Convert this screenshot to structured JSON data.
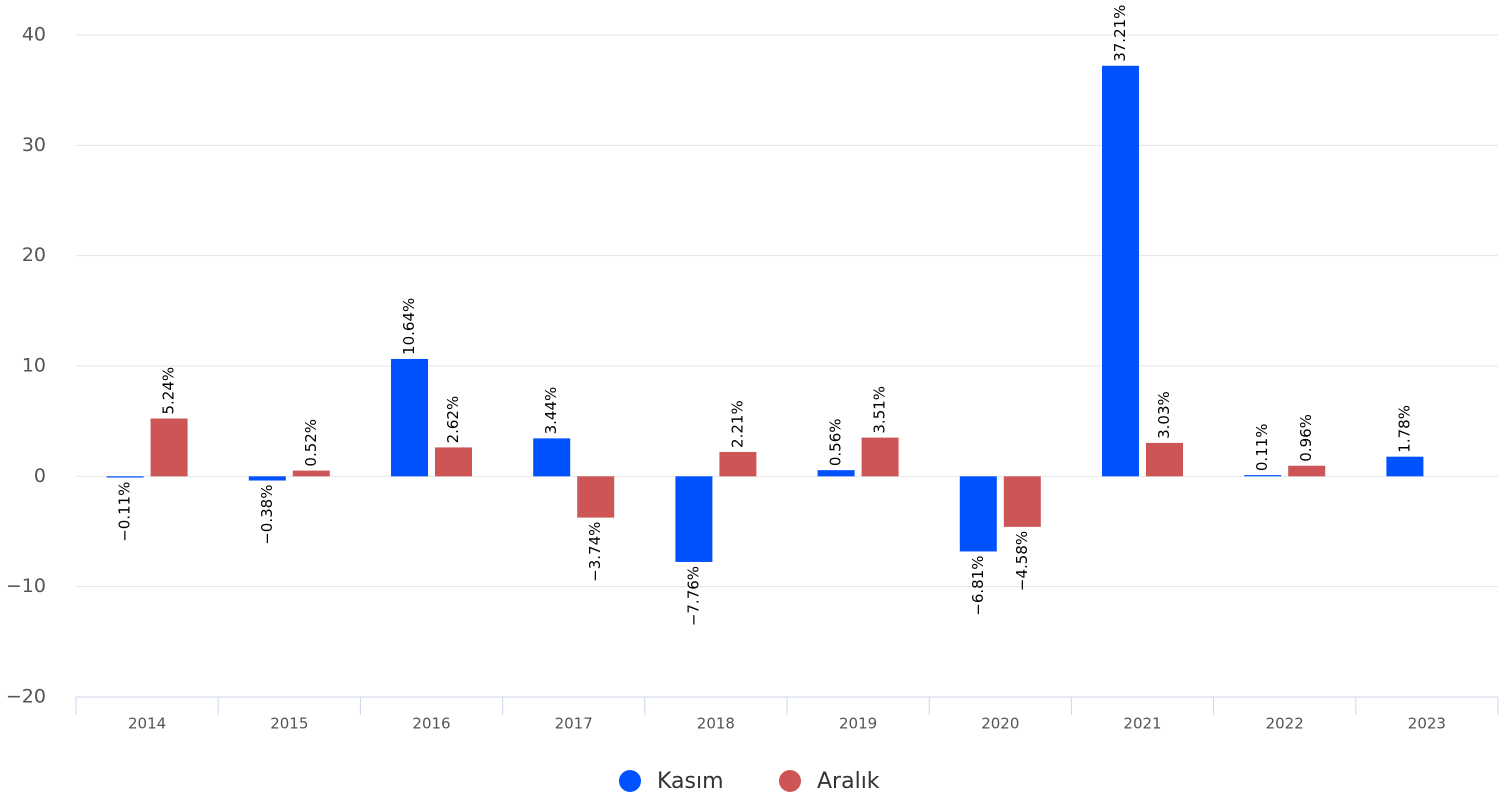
{
  "chart_data": {
    "type": "bar",
    "categories": [
      "2014",
      "2015",
      "2016",
      "2017",
      "2018",
      "2019",
      "2020",
      "2021",
      "2022",
      "2023"
    ],
    "series": [
      {
        "name": "Kasım",
        "color": "#0052ff",
        "values": [
          -0.11,
          -0.38,
          10.64,
          3.44,
          -7.76,
          0.56,
          -6.81,
          37.21,
          0.11,
          1.78
        ],
        "value_labels": [
          "−0.11%",
          "−0.38%",
          "10.64%",
          "3.44%",
          "−7.76%",
          "0.56%",
          "−6.81%",
          "37.21%",
          "0.11%",
          "1.78%"
        ]
      },
      {
        "name": "Aralık",
        "color": "#cd5555",
        "values": [
          5.24,
          0.52,
          2.62,
          -3.74,
          2.21,
          3.51,
          -4.58,
          3.03,
          0.96,
          null
        ],
        "value_labels": [
          "5.24%",
          "0.52%",
          "2.62%",
          "−3.74%",
          "2.21%",
          "3.51%",
          "−4.58%",
          "3.03%",
          "0.96%",
          null
        ]
      }
    ],
    "ylim": [
      -20,
      40
    ],
    "yticks": [
      {
        "value": -20,
        "label": "−20"
      },
      {
        "value": -10,
        "label": "−10"
      },
      0,
      10,
      20,
      30,
      40
    ],
    "grid": true,
    "legend": "bottom"
  }
}
